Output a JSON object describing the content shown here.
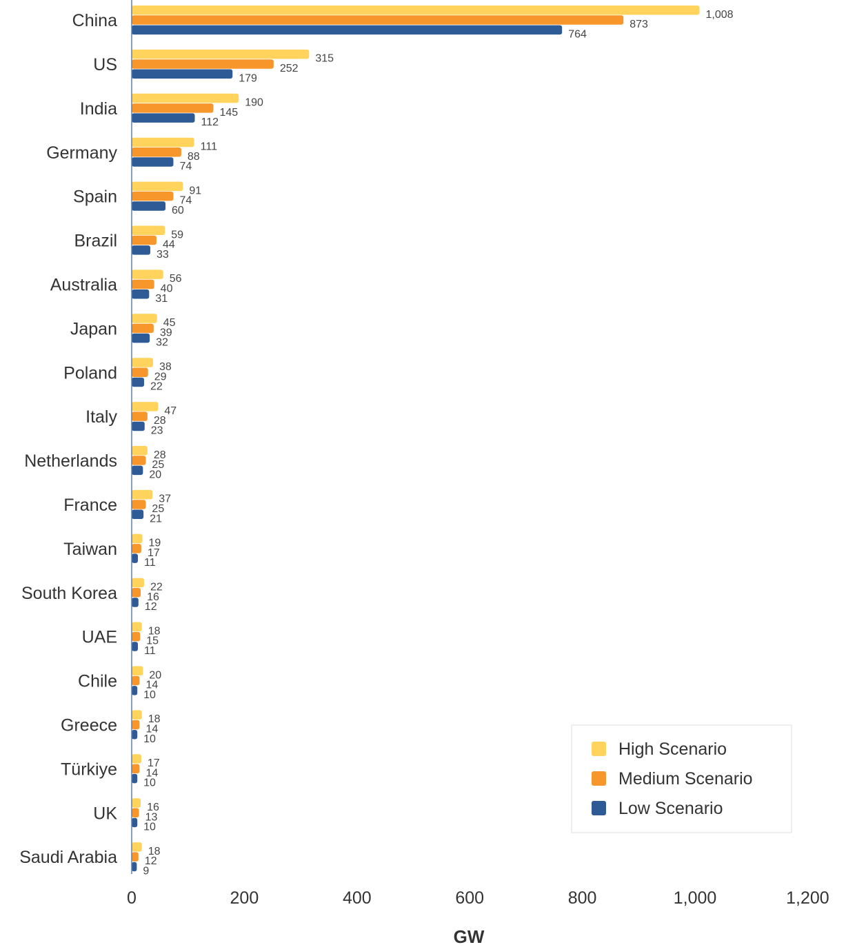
{
  "chart_data": {
    "type": "bar",
    "orientation": "horizontal",
    "categories": [
      "China",
      "US",
      "India",
      "Germany",
      "Spain",
      "Brazil",
      "Australia",
      "Japan",
      "Poland",
      "Italy",
      "Netherlands",
      "France",
      "Taiwan",
      "South Korea",
      "UAE",
      "Chile",
      "Greece",
      "Türkiye",
      "UK",
      "Saudi Arabia"
    ],
    "series": [
      {
        "name": "High Scenario",
        "color": "#FFD35C",
        "values": [
          1008,
          315,
          190,
          111,
          91,
          59,
          56,
          45,
          38,
          47,
          28,
          37,
          19,
          22,
          18,
          20,
          18,
          17,
          16,
          18
        ]
      },
      {
        "name": "Medium Scenario",
        "color": "#F7962B",
        "values": [
          873,
          252,
          145,
          88,
          74,
          44,
          40,
          39,
          29,
          28,
          25,
          25,
          17,
          16,
          15,
          14,
          14,
          14,
          13,
          12
        ]
      },
      {
        "name": "Low Scenario",
        "color": "#2E5B95",
        "values": [
          764,
          179,
          112,
          74,
          60,
          33,
          31,
          32,
          22,
          23,
          20,
          21,
          11,
          12,
          11,
          10,
          10,
          10,
          10,
          9
        ]
      }
    ],
    "xlabel": "GW",
    "xlim": [
      0,
      1200
    ],
    "xticks": [
      "0",
      "200",
      "400",
      "600",
      "800",
      "1,000",
      "1,200"
    ],
    "grid": false,
    "legend_position": "bottom-right"
  }
}
